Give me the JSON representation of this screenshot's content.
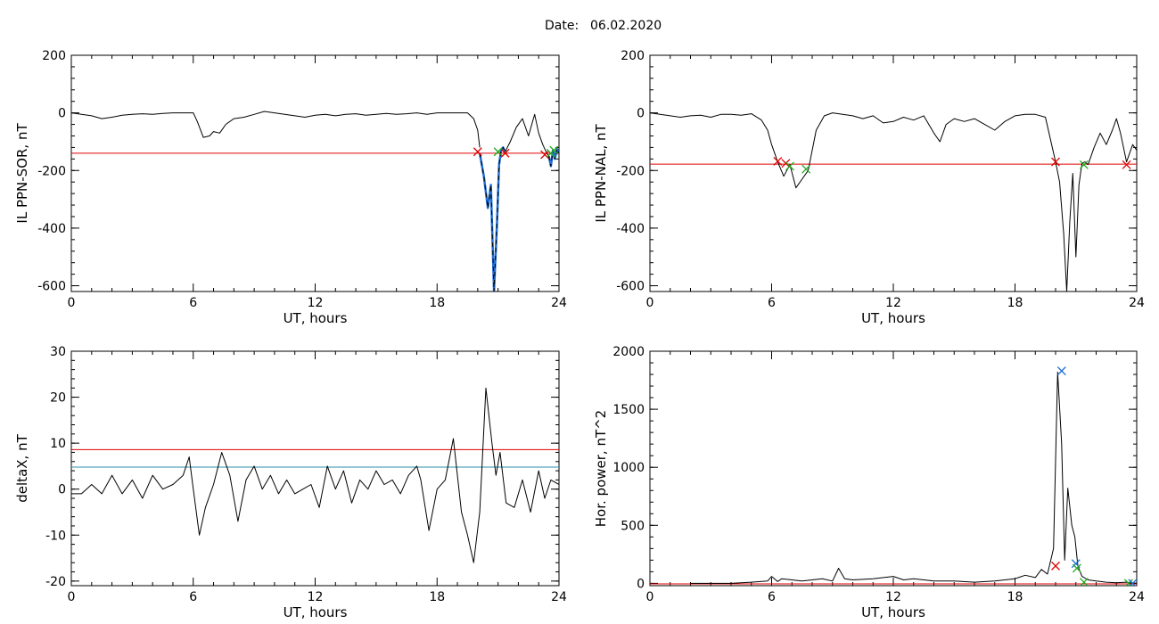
{
  "figure": {
    "date_label": "Date:",
    "date_value": "06.02.2020"
  },
  "colors": {
    "background": "#ffffff",
    "axes": "#000000",
    "data_line": "#000000",
    "highlight_segment": "#1f6fd6",
    "threshold_red": "#e00000",
    "threshold_teal": "#2a8fa8",
    "marker_red": "#e00000",
    "marker_green": "#22aa22",
    "marker_blue": "#1f6fd6"
  },
  "chart_data": [
    {
      "id": "ppn-sor",
      "type": "line",
      "xlabel": "UT, hours",
      "ylabel": "IL PPN-SOR, nT",
      "xlim": [
        0,
        24
      ],
      "ylim": [
        -620,
        200
      ],
      "xticks": [
        0,
        6,
        12,
        18,
        24
      ],
      "yticks": [
        200,
        0,
        -200,
        -400,
        -600
      ],
      "grid": false,
      "threshold_lines": [
        {
          "y": -140,
          "color": "red"
        }
      ],
      "series": [
        {
          "x": [
            0,
            0.5,
            1,
            1.5,
            2,
            2.5,
            3,
            3.5,
            4,
            4.5,
            5,
            5.5,
            6,
            6.2,
            6.5,
            6.8,
            7,
            7.3,
            7.6,
            8,
            8.5,
            9,
            9.5,
            10,
            10.5,
            11,
            11.5,
            12,
            12.5,
            13,
            13.5,
            14,
            14.5,
            15,
            15.5,
            16,
            16.5,
            17,
            17.5,
            18,
            18.5,
            19,
            19.5,
            19.8,
            20.0,
            20.1
          ],
          "y": [
            0,
            -5,
            -10,
            -20,
            -15,
            -8,
            -5,
            -3,
            -5,
            -2,
            0,
            0,
            0,
            -30,
            -85,
            -80,
            -65,
            -70,
            -40,
            -20,
            -15,
            -5,
            5,
            0,
            -5,
            -10,
            -15,
            -8,
            -5,
            -10,
            -5,
            -3,
            -8,
            -5,
            -2,
            -5,
            -3,
            0,
            -5,
            0,
            0,
            0,
            0,
            -20,
            -60,
            -120
          ]
        },
        {
          "x": [
            20.1,
            20.3,
            20.5,
            20.65,
            20.8,
            20.95,
            21.05,
            21.15,
            21.25,
            21.35
          ],
          "y": [
            -140,
            -220,
            -330,
            -250,
            -620,
            -380,
            -180,
            -130,
            -120,
            -135
          ],
          "highlight": true
        },
        {
          "x": [
            21.35,
            21.6,
            21.9,
            22.2,
            22.5,
            22.8,
            23.0,
            23.2,
            23.4,
            23.5
          ],
          "y": [
            -135,
            -100,
            -50,
            -20,
            -80,
            -5,
            -70,
            -110,
            -140,
            -150
          ]
        },
        {
          "x": [
            23.5,
            23.6,
            23.7,
            23.8,
            23.9,
            24.0
          ],
          "y": [
            -150,
            -185,
            -130,
            -160,
            -125,
            -140
          ],
          "highlight": true
        }
      ],
      "markers": [
        {
          "x": 20.0,
          "y": -135,
          "color": "red"
        },
        {
          "x": 21.0,
          "y": -135,
          "color": "green"
        },
        {
          "x": 21.35,
          "y": -140,
          "color": "red"
        },
        {
          "x": 23.3,
          "y": -145,
          "color": "red"
        },
        {
          "x": 23.6,
          "y": -140,
          "color": "green"
        },
        {
          "x": 23.75,
          "y": -130,
          "color": "green"
        }
      ]
    },
    {
      "id": "ppn-nal",
      "type": "line",
      "xlabel": "UT, hours",
      "ylabel": "IL PPN-NAL, nT",
      "xlim": [
        0,
        24
      ],
      "ylim": [
        -620,
        200
      ],
      "xticks": [
        0,
        6,
        12,
        18,
        24
      ],
      "yticks": [
        200,
        0,
        -200,
        -400,
        -600
      ],
      "grid": false,
      "threshold_lines": [
        {
          "y": -178,
          "color": "red"
        }
      ],
      "series": [
        {
          "x": [
            0,
            0.5,
            1,
            1.5,
            2,
            2.5,
            3,
            3.5,
            4,
            4.5,
            5,
            5.5,
            5.8,
            6.0,
            6.3
          ],
          "y": [
            0,
            -5,
            -10,
            -15,
            -10,
            -8,
            -15,
            -5,
            -5,
            -8,
            -3,
            -25,
            -60,
            -110,
            -170
          ]
        },
        {
          "x": [
            6.3,
            6.6,
            6.9,
            7.2,
            7.5,
            7.8
          ],
          "y": [
            -170,
            -220,
            -180,
            -260,
            -230,
            -200
          ]
        },
        {
          "x": [
            7.8,
            8.2,
            8.6,
            9,
            9.5,
            10,
            10.5,
            11,
            11.5,
            12,
            12.5,
            13,
            13.5,
            14,
            14.3,
            14.6,
            15,
            15.5,
            16,
            16.5,
            17,
            17.5,
            18,
            18.5,
            19,
            19.5,
            20.0
          ],
          "y": [
            -200,
            -60,
            -10,
            0,
            -5,
            -10,
            -20,
            -10,
            -35,
            -30,
            -15,
            -25,
            -10,
            -70,
            -100,
            -40,
            -20,
            -30,
            -20,
            -40,
            -60,
            -30,
            -10,
            -5,
            -5,
            -15,
            -170
          ]
        },
        {
          "x": [
            20.0,
            20.2,
            20.4,
            20.55,
            20.7,
            20.85,
            21.0,
            21.15,
            21.3,
            21.45,
            21.6
          ],
          "y": [
            -170,
            -240,
            -420,
            -620,
            -380,
            -210,
            -500,
            -250,
            -175,
            -170,
            -180
          ]
        },
        {
          "x": [
            21.6,
            21.9,
            22.2,
            22.5,
            22.8,
            23.0,
            23.2,
            23.5,
            23.8,
            24.0
          ],
          "y": [
            -180,
            -120,
            -70,
            -110,
            -60,
            -20,
            -70,
            -170,
            -110,
            -130
          ]
        }
      ],
      "markers": [
        {
          "x": 6.3,
          "y": -168,
          "color": "red"
        },
        {
          "x": 6.7,
          "y": -175,
          "color": "red"
        },
        {
          "x": 6.9,
          "y": -185,
          "color": "green"
        },
        {
          "x": 7.7,
          "y": -195,
          "color": "green"
        },
        {
          "x": 20.0,
          "y": -170,
          "color": "red"
        },
        {
          "x": 21.4,
          "y": -180,
          "color": "green"
        },
        {
          "x": 23.5,
          "y": -180,
          "color": "red"
        }
      ]
    },
    {
      "id": "deltax",
      "type": "line",
      "xlabel": "UT, hours",
      "ylabel": "deltaX, nT",
      "xlim": [
        0,
        24
      ],
      "ylim": [
        -21,
        30
      ],
      "xticks": [
        0,
        6,
        12,
        18,
        24
      ],
      "yticks": [
        30,
        20,
        10,
        0,
        -10,
        -20
      ],
      "grid": false,
      "threshold_lines": [
        {
          "y": 8.6,
          "color": "red"
        },
        {
          "x_note": "",
          "y": 4.8,
          "color": "teal"
        }
      ],
      "series": [
        {
          "x": [
            0,
            0.5,
            1,
            1.5,
            2,
            2.5,
            3,
            3.5,
            4,
            4.5,
            5,
            5.5,
            5.8,
            6.0,
            6.3,
            6.6,
            7.0,
            7.4,
            7.8,
            8.2,
            8.6,
            9.0,
            9.4,
            9.8,
            10.2,
            10.6,
            11.0,
            11.4,
            11.8,
            12.2,
            12.6,
            13.0,
            13.4,
            13.8,
            14.2,
            14.6,
            15.0,
            15.4,
            15.8,
            16.2,
            16.6,
            17.0,
            17.2,
            17.6,
            18.0,
            18.4,
            18.8,
            19.2,
            19.5,
            19.8,
            20.1,
            20.4,
            20.7,
            20.9,
            21.1,
            21.4,
            21.8,
            22.2,
            22.6,
            23.0,
            23.3,
            23.6,
            24.0
          ],
          "y": [
            -1,
            -1,
            1,
            -1,
            3,
            -1,
            2,
            -2,
            3,
            0,
            1,
            3,
            7,
            0,
            -10,
            -4,
            1,
            8,
            3,
            -7,
            2,
            5,
            0,
            3,
            -1,
            2,
            -1,
            0,
            1,
            -4,
            5,
            0,
            4,
            -3,
            2,
            0,
            4,
            1,
            2,
            -1,
            3,
            5,
            2,
            -9,
            0,
            2,
            11,
            -5,
            -10,
            -16,
            -5,
            22,
            10,
            3,
            8,
            -3,
            -4,
            2,
            -5,
            4,
            -2,
            2,
            1
          ]
        }
      ],
      "markers": []
    },
    {
      "id": "hor-power",
      "type": "line",
      "xlabel": "UT, hours",
      "ylabel": "Hor. power, nT^2",
      "xlim": [
        0,
        24
      ],
      "ylim": [
        -20,
        2000
      ],
      "xticks": [
        0,
        6,
        12,
        18,
        24
      ],
      "yticks": [
        2000,
        1500,
        1000,
        500,
        0
      ],
      "grid": false,
      "threshold_lines": [
        {
          "y": -5,
          "color": "red"
        }
      ],
      "series": [
        {
          "x": [
            2.0,
            3,
            4,
            5,
            5.8,
            6.0,
            6.3,
            6.5,
            7.0,
            7.5,
            8.0,
            8.5,
            9.0,
            9.3,
            9.6,
            10,
            11,
            12,
            12.5,
            13,
            14,
            15,
            16,
            17,
            18,
            18.5,
            19.0,
            19.3,
            19.6,
            19.9,
            20.1,
            20.3,
            20.45,
            20.6,
            20.8,
            20.95,
            21.1,
            21.3,
            21.6,
            22,
            22.5,
            23,
            23.5,
            24
          ],
          "y": [
            0,
            0,
            0,
            10,
            20,
            60,
            15,
            40,
            30,
            20,
            30,
            40,
            20,
            130,
            40,
            30,
            40,
            60,
            30,
            40,
            20,
            20,
            10,
            20,
            40,
            70,
            50,
            120,
            80,
            300,
            1820,
            1200,
            200,
            820,
            500,
            400,
            150,
            60,
            30,
            20,
            10,
            5,
            10,
            0
          ]
        }
      ],
      "markers": [
        {
          "x": 20.0,
          "y": 150,
          "color": "red"
        },
        {
          "x": 20.3,
          "y": 1830,
          "color": "blue"
        },
        {
          "x": 21.0,
          "y": 170,
          "color": "blue"
        },
        {
          "x": 21.05,
          "y": 130,
          "color": "green"
        },
        {
          "x": 21.4,
          "y": 10,
          "color": "green"
        },
        {
          "x": 23.6,
          "y": 0,
          "color": "green"
        },
        {
          "x": 23.8,
          "y": 0,
          "color": "blue"
        }
      ]
    }
  ]
}
